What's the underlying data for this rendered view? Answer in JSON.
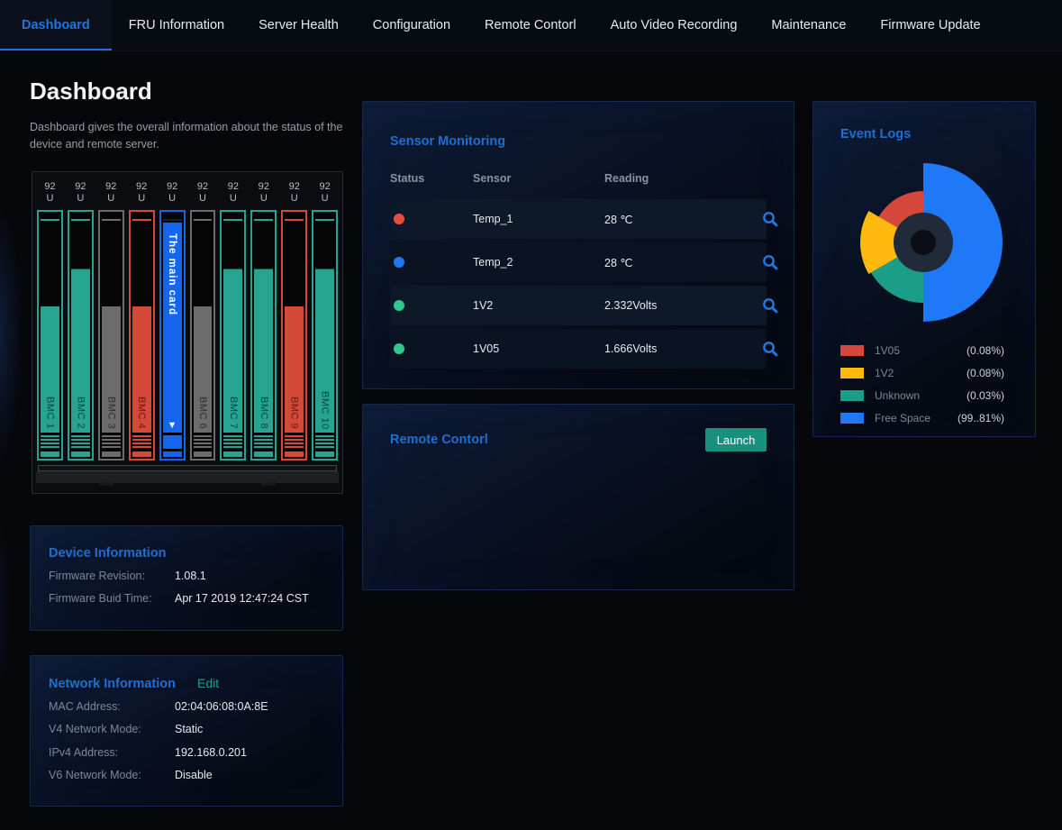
{
  "nav": {
    "tabs": [
      {
        "label": "Dashboard",
        "active": true
      },
      {
        "label": "FRU Information",
        "active": false
      },
      {
        "label": "Server Health",
        "active": false
      },
      {
        "label": "Configuration",
        "active": false
      },
      {
        "label": "Remote Contorl",
        "active": false
      },
      {
        "label": "Auto Video Recording",
        "active": false
      },
      {
        "label": "Maintenance",
        "active": false
      },
      {
        "label": "Firmware Update",
        "active": false
      }
    ]
  },
  "page": {
    "title": "Dashboard",
    "description": "Dashboard gives the overall information about the status of the device and remote server."
  },
  "rack": {
    "unit_top": "92",
    "unit_bottom": "U",
    "main_card_label": "The main card",
    "main_card_arrow": "▼",
    "cards": [
      {
        "label": "BMC 1",
        "status": "teal",
        "fill": "low"
      },
      {
        "label": "BMC 2",
        "status": "teal",
        "fill": "high"
      },
      {
        "label": "BMC 3",
        "status": "gray",
        "fill": "low"
      },
      {
        "label": "BMC 4",
        "status": "red",
        "fill": "low"
      },
      {
        "label": "The main card",
        "status": "main",
        "fill": "full"
      },
      {
        "label": "BMC 6",
        "status": "gray",
        "fill": "low"
      },
      {
        "label": "BMC 7",
        "status": "teal",
        "fill": "high"
      },
      {
        "label": "BMC 8",
        "status": "teal",
        "fill": "high"
      },
      {
        "label": "BMC 9",
        "status": "red",
        "fill": "low"
      },
      {
        "label": "BMC 10",
        "status": "teal",
        "fill": "high"
      }
    ]
  },
  "device_info": {
    "title": "Device Information",
    "rows": [
      {
        "label": "Firmware Revision:",
        "value": "1.08.1"
      },
      {
        "label": "Firmware Buid Time:",
        "value": "Apr 17 2019 12:47:24 CST"
      }
    ]
  },
  "network_info": {
    "title": "Network Information",
    "edit_label": "Edit",
    "rows": [
      {
        "label": "MAC Address:",
        "value": "02:04:06:08:0A:8E"
      },
      {
        "label": "V4 Network Mode:",
        "value": "Static"
      },
      {
        "label": "IPv4 Address:",
        "value": "192.168.0.201"
      },
      {
        "label": "V6 Network Mode:",
        "value": "Disable"
      }
    ]
  },
  "sensor_monitoring": {
    "title": "Sensor Monitoring",
    "columns": [
      "Status",
      "Sensor",
      "Reading"
    ],
    "rows": [
      {
        "status_color": "#e2503c",
        "sensor": "Temp_1",
        "reading": "28 ℃"
      },
      {
        "status_color": "#1e78f2",
        "sensor": "Temp_2",
        "reading": "28 ℃"
      },
      {
        "status_color": "#2fc98c",
        "sensor": "1V2",
        "reading": "2.332Volts"
      },
      {
        "status_color": "#2fc98c",
        "sensor": "1V05",
        "reading": "1.666Volts"
      }
    ]
  },
  "remote_control": {
    "title": "Remote Contorl",
    "launch_label": "Launch"
  },
  "event_logs": {
    "title": "Event Logs",
    "chart_data": {
      "type": "pie",
      "title": "Event Logs",
      "labels": [
        "1V05",
        "1V2",
        "Unknown",
        "Free Space"
      ],
      "values": [
        0.08,
        0.08,
        0.03,
        99.81
      ],
      "colors": [
        "#d6473c",
        "#fdb90d",
        "#1b9e89",
        "#1f78f5"
      ],
      "legend_position": "bottom",
      "sectors": [
        {
          "name": "free-space",
          "start": 0,
          "end": 180,
          "r": 88,
          "color": "#1f78f5"
        },
        {
          "name": "1v05",
          "start": -60,
          "end": 0,
          "r": 57,
          "color": "#d6473c"
        },
        {
          "name": "1v2",
          "start": -120,
          "end": -60,
          "r": 70,
          "color": "#fdb90d"
        },
        {
          "name": "unknown",
          "start": -180,
          "end": -120,
          "r": 67,
          "color": "#1b9e89"
        }
      ],
      "hole": {
        "r": 33,
        "color": "#202a38"
      },
      "dot": {
        "r": 14,
        "color": "#0b0f15"
      }
    },
    "legend": [
      {
        "color": "#d6473c",
        "label": "1V05",
        "value": "(0.08%)"
      },
      {
        "color": "#fdb90d",
        "label": "1V2",
        "value": "(0.08%)"
      },
      {
        "color": "#1b9e89",
        "label": "Unknown",
        "value": "(0.03%)"
      },
      {
        "color": "#1f78f5",
        "label": "Free Space",
        "value": "(99..81%)"
      }
    ]
  },
  "colors": {
    "accent_blue": "#1f6fd0",
    "nav_active": "#2176dd",
    "teal_action": "#19907e",
    "card_teal": "#27a392",
    "card_gray": "#6c6c6c",
    "card_red": "#d6493a",
    "card_main_blue": "#1565ef",
    "panel_border": "#13294d",
    "background": "#05070b"
  }
}
